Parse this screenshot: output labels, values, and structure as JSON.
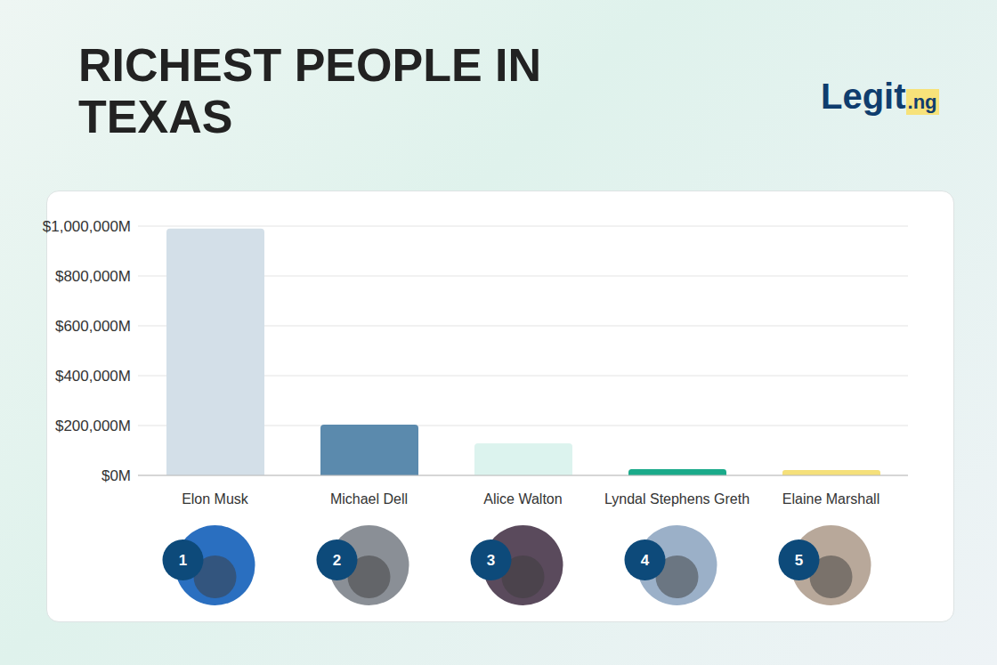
{
  "chart_data": {
    "type": "bar",
    "title": "RICHEST PEOPLE IN TEXAS",
    "logo": "Legit.ng",
    "categories": [
      "Elon Musk",
      "Michael Dell",
      "Alice Walton",
      "Lyndal Stephens Greth",
      "Elaine Marshall"
    ],
    "ranks": [
      1,
      2,
      3,
      4,
      5
    ],
    "values": [
      990000,
      204000,
      129000,
      25000,
      21000
    ],
    "colors": [
      "#d3dfe8",
      "#5b8aad",
      "#dcf3ee",
      "#1aaa8a",
      "#f5e07a"
    ],
    "ylim": [
      0,
      1000000
    ],
    "yticks": [
      {
        "value": 0,
        "label": "$0M"
      },
      {
        "value": 200000,
        "label": "$200,000M"
      },
      {
        "value": 400000,
        "label": "$400,000M"
      },
      {
        "value": 600000,
        "label": "$600,000M"
      },
      {
        "value": 800000,
        "label": "$800,000M"
      },
      {
        "value": 1000000,
        "label": "$1,000,000M"
      }
    ],
    "grid": true
  }
}
